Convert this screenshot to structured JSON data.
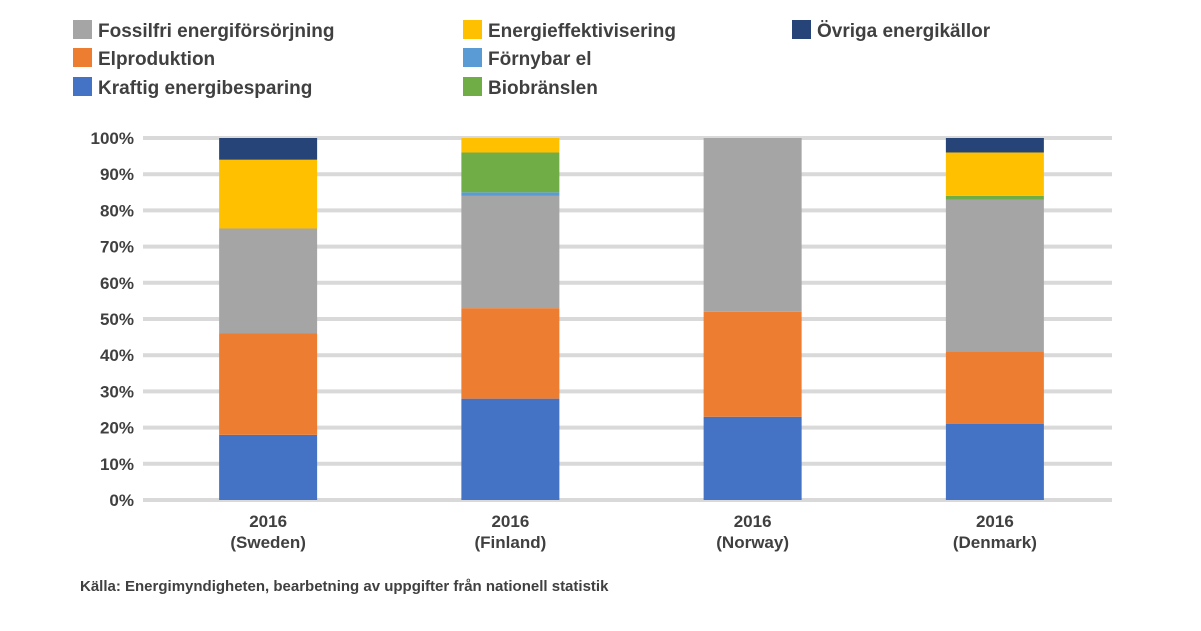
{
  "chart_data": {
    "type": "bar",
    "stacked": true,
    "percent_stacked": true,
    "title": "",
    "xlabel": "",
    "ylabel": "",
    "ylim": [
      0,
      100
    ],
    "y_ticks": [
      "0%",
      "10%",
      "20%",
      "30%",
      "40%",
      "50%",
      "60%",
      "70%",
      "80%",
      "90%",
      "100%"
    ],
    "grid": true,
    "legend_position": "top",
    "categories": [
      [
        "2016",
        "(Sweden)"
      ],
      [
        "2016",
        "(Finland)"
      ],
      [
        "2016",
        "(Norway)"
      ],
      [
        "2016",
        "(Denmark)"
      ]
    ],
    "series": [
      {
        "name": "Kraftig energibesparing",
        "color": "#4472C4",
        "values": [
          18,
          28,
          23,
          21
        ]
      },
      {
        "name": "Elproduktion",
        "color": "#ED7D31",
        "values": [
          28,
          25,
          29,
          20
        ]
      },
      {
        "name": "Fossilfri energiförsörjning",
        "color": "#A5A5A5",
        "values": [
          29,
          31,
          48,
          42
        ]
      },
      {
        "name": "Förnybar el",
        "color": "#5B9BD5",
        "values": [
          0,
          1,
          0,
          0
        ]
      },
      {
        "name": "Biobränslen",
        "color": "#70AD47",
        "values": [
          0,
          11,
          0,
          1
        ]
      },
      {
        "name": "Energieffektivisering",
        "color": "#FFC000",
        "values": [
          19,
          4,
          0,
          12
        ]
      },
      {
        "name": "Övriga energikällor",
        "color": "#264478",
        "values": [
          6,
          0,
          0,
          4
        ]
      }
    ],
    "footnote": "Källa: Energimyndigheten, bearbetning av uppgifter från nationell statistik"
  }
}
